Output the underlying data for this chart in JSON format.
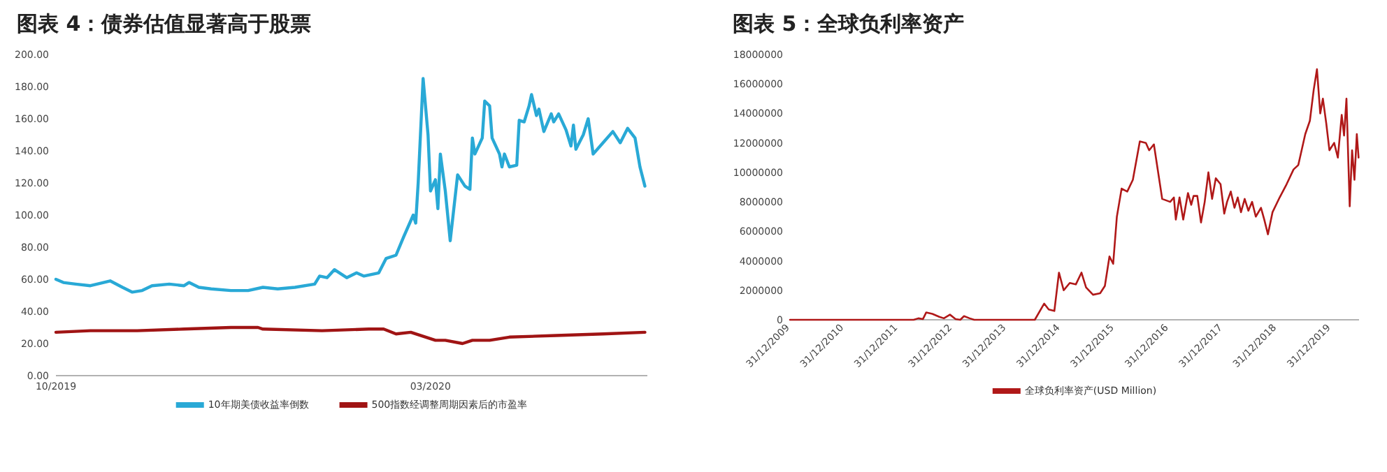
{
  "chart_data": [
    {
      "type": "line",
      "title": "图表 4：债券估值显著高于股票",
      "legend": "bottom",
      "grid": false,
      "xlim": [
        "2019-10-01",
        "2020-05-28"
      ],
      "xticks": [
        {
          "value": "2019-10-01",
          "label": "10/2019"
        },
        {
          "value": "2020-03-01",
          "label": "03/2020"
        }
      ],
      "ylim": [
        0,
        200
      ],
      "yticks": [
        {
          "value": 0,
          "label": "0.00"
        },
        {
          "value": 20,
          "label": "20.00"
        },
        {
          "value": 40,
          "label": "40.00"
        },
        {
          "value": 60,
          "label": "60.00"
        },
        {
          "value": 80,
          "label": "80.00"
        },
        {
          "value": 100,
          "label": "100.00"
        },
        {
          "value": 120,
          "label": "120.00"
        },
        {
          "value": 140,
          "label": "140.00"
        },
        {
          "value": 160,
          "label": "160.00"
        },
        {
          "value": 180,
          "label": "180.00"
        },
        {
          "value": 200,
          "label": "200.00"
        }
      ],
      "series": [
        {
          "name": "10年期美债收益率倒数",
          "color": "#29a9d6",
          "x": [
            "2019-10-01",
            "2019-10-04",
            "2019-10-09",
            "2019-10-15",
            "2019-10-23",
            "2019-10-28",
            "2019-11-01",
            "2019-11-05",
            "2019-11-09",
            "2019-11-16",
            "2019-11-22",
            "2019-11-24",
            "2019-11-28",
            "2019-12-03",
            "2019-12-11",
            "2019-12-18",
            "2019-12-24",
            "2019-12-30",
            "2020-01-06",
            "2020-01-14",
            "2020-01-16",
            "2020-01-19",
            "2020-01-22",
            "2020-01-27",
            "2020-01-31",
            "2020-02-03",
            "2020-02-09",
            "2020-02-12",
            "2020-02-16",
            "2020-02-19",
            "2020-02-23",
            "2020-02-24",
            "2020-02-25",
            "2020-02-27",
            "2020-02-29",
            "2020-03-01",
            "2020-03-03",
            "2020-03-04",
            "2020-03-05",
            "2020-03-07",
            "2020-03-09",
            "2020-03-12",
            "2020-03-15",
            "2020-03-17",
            "2020-03-18",
            "2020-03-19",
            "2020-03-22",
            "2020-03-23",
            "2020-03-25",
            "2020-03-26",
            "2020-03-29",
            "2020-03-30",
            "2020-03-31",
            "2020-04-02",
            "2020-04-05",
            "2020-04-06",
            "2020-04-08",
            "2020-04-10",
            "2020-04-11",
            "2020-04-13",
            "2020-04-14",
            "2020-04-16",
            "2020-04-19",
            "2020-04-20",
            "2020-04-22",
            "2020-04-25",
            "2020-04-27",
            "2020-04-28",
            "2020-04-29",
            "2020-05-02",
            "2020-05-04",
            "2020-05-06",
            "2020-05-10",
            "2020-05-14",
            "2020-05-17",
            "2020-05-20",
            "2020-05-23",
            "2020-05-25",
            "2020-05-27"
          ],
          "values": [
            60,
            58,
            57,
            56,
            59,
            55,
            52,
            53,
            56,
            57,
            56,
            58,
            55,
            54,
            53,
            53,
            55,
            54,
            55,
            57,
            62,
            61,
            66,
            61,
            64,
            62,
            64,
            73,
            75,
            86,
            100,
            95,
            120,
            185,
            150,
            115,
            122,
            104,
            138,
            115,
            84,
            125,
            118,
            116,
            148,
            138,
            148,
            171,
            168,
            148,
            138,
            130,
            138,
            130,
            131,
            159,
            158,
            168,
            175,
            162,
            166,
            152,
            163,
            158,
            163,
            153,
            143,
            156,
            141,
            150,
            160,
            138,
            145,
            152,
            145,
            154,
            148,
            130,
            118
          ]
        },
        {
          "name": "500指数经调整周期因素后的市盈率",
          "color": "#a01414",
          "x": [
            "2019-10-01",
            "2019-10-15",
            "2019-11-03",
            "2019-11-22",
            "2019-12-11",
            "2019-12-22",
            "2019-12-24",
            "2020-01-17",
            "2020-02-05",
            "2020-02-11",
            "2020-02-16",
            "2020-02-22",
            "2020-03-03",
            "2020-03-07",
            "2020-03-14",
            "2020-03-18",
            "2020-03-25",
            "2020-04-02",
            "2020-04-21",
            "2020-05-10",
            "2020-05-27"
          ],
          "values": [
            27,
            28,
            28,
            29,
            30,
            30,
            29,
            28,
            29,
            29,
            26,
            27,
            22,
            22,
            20,
            22,
            22,
            24,
            25,
            26,
            27
          ]
        }
      ]
    },
    {
      "type": "line",
      "title": "图表 5：全球负利率资产",
      "legend": "bottom",
      "grid": false,
      "xlim": [
        "2009-12-31",
        "2020-07-08"
      ],
      "xticks": [
        {
          "value": "2009-12-31",
          "label": "31/12/2009"
        },
        {
          "value": "2010-12-31",
          "label": "31/12/2010"
        },
        {
          "value": "2011-12-31",
          "label": "31/12/2011"
        },
        {
          "value": "2012-12-31",
          "label": "31/12/2012"
        },
        {
          "value": "2013-12-31",
          "label": "31/12/2013"
        },
        {
          "value": "2014-12-31",
          "label": "31/12/2014"
        },
        {
          "value": "2015-12-31",
          "label": "31/12/2015"
        },
        {
          "value": "2016-12-31",
          "label": "31/12/2016"
        },
        {
          "value": "2017-12-31",
          "label": "31/12/2017"
        },
        {
          "value": "2018-12-31",
          "label": "31/12/2018"
        },
        {
          "value": "2019-12-31",
          "label": "31/12/2019"
        }
      ],
      "ylim": [
        0,
        18000000
      ],
      "yticks": [
        0,
        2000000,
        4000000,
        6000000,
        8000000,
        10000000,
        12000000,
        14000000,
        16000000,
        18000000
      ],
      "series": [
        {
          "name": "全球负利率资产(USD Million)",
          "color": "#b01818",
          "x": [
            "2009-12-31",
            "2012-04-14",
            "2012-05-16",
            "2012-06-16",
            "2012-07-08",
            "2012-08-18",
            "2012-10-04",
            "2012-11-04",
            "2012-12-15",
            "2013-01-22",
            "2013-02-23",
            "2013-03-20",
            "2013-04-27",
            "2013-05-28",
            "2014-07-11",
            "2014-09-12",
            "2014-10-13",
            "2014-11-20",
            "2014-12-21",
            "2015-01-22",
            "2015-03-04",
            "2015-04-14",
            "2015-05-22",
            "2015-06-22",
            "2015-08-08",
            "2015-09-25",
            "2015-10-27",
            "2015-11-27",
            "2015-12-22",
            "2016-01-16",
            "2016-02-17",
            "2016-03-26",
            "2016-05-03",
            "2016-06-19",
            "2016-07-30",
            "2016-08-21",
            "2016-09-22",
            "2016-11-17",
            "2017-01-10",
            "2017-02-04",
            "2017-02-17",
            "2017-03-14",
            "2017-04-08",
            "2017-05-10",
            "2017-06-01",
            "2017-06-17",
            "2017-07-12",
            "2017-08-06",
            "2017-08-31",
            "2017-09-25",
            "2017-10-20",
            "2017-11-14",
            "2017-12-16",
            "2018-01-10",
            "2018-01-29",
            "2018-02-23",
            "2018-03-20",
            "2018-04-11",
            "2018-05-03",
            "2018-05-28",
            "2018-06-22",
            "2018-07-17",
            "2018-08-11",
            "2018-09-15",
            "2018-10-07",
            "2018-11-01",
            "2018-12-02",
            "2019-01-19",
            "2019-03-07",
            "2019-04-23",
            "2019-05-25",
            "2019-07-11",
            "2019-08-11",
            "2019-09-06",
            "2019-09-28",
            "2019-10-20",
            "2019-11-07",
            "2019-11-30",
            "2019-12-21",
            "2020-01-22",
            "2020-02-16",
            "2020-03-13",
            "2020-03-29",
            "2020-04-14",
            "2020-05-06",
            "2020-05-22",
            "2020-06-07",
            "2020-06-23",
            "2020-07-05"
          ],
          "values": [
            0,
            0,
            100000,
            50000,
            500000,
            400000,
            200000,
            100000,
            350000,
            50000,
            0,
            250000,
            100000,
            0,
            0,
            1100000,
            700000,
            600000,
            3200000,
            2000000,
            2500000,
            2400000,
            3200000,
            2200000,
            1700000,
            1800000,
            2300000,
            4300000,
            3800000,
            7000000,
            8900000,
            8700000,
            9500000,
            12100000,
            12000000,
            11500000,
            11900000,
            8200000,
            8000000,
            8300000,
            6800000,
            8300000,
            6800000,
            8600000,
            7800000,
            8400000,
            8400000,
            6600000,
            8000000,
            10000000,
            8200000,
            9600000,
            9200000,
            7200000,
            8000000,
            8700000,
            7600000,
            8300000,
            7300000,
            8200000,
            7400000,
            8000000,
            7000000,
            7600000,
            6800000,
            5800000,
            7300000,
            8300000,
            9200000,
            10200000,
            10500000,
            12600000,
            13500000,
            15600000,
            17000000,
            14000000,
            15000000,
            13300000,
            11500000,
            12000000,
            11000000,
            13900000,
            12500000,
            15000000,
            7700000,
            11500000,
            9500000,
            12600000,
            11000000
          ]
        }
      ]
    }
  ]
}
